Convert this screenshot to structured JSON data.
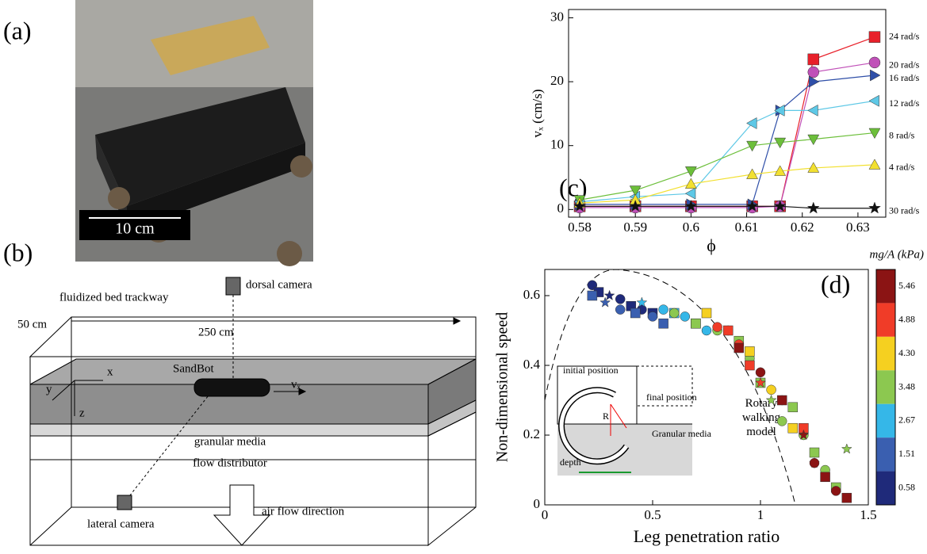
{
  "photo": {
    "panel_label": "(a)",
    "scale_bar": "10 cm"
  },
  "diagram": {
    "panel_label": "(b)",
    "dorsal_camera": "dorsal camera",
    "trackway": "fluidized bed trackway",
    "width": "50 cm",
    "length": "250 cm",
    "robot": "SandBot",
    "axis_x": "x",
    "axis_y": "y",
    "axis_z": "z",
    "velocity": "vₓ",
    "granular_media": "granular media",
    "flow_distributor": "flow distributor",
    "lateral_camera": "lateral camera",
    "air_flow": "air flow direction"
  },
  "chart_data": [
    {
      "type": "line",
      "panel_label": "(c)",
      "x_label": "ϕ",
      "y_label": "vₓ (cm/s)",
      "x": [
        0.58,
        0.59,
        0.6,
        0.611,
        0.616,
        0.622,
        0.633
      ],
      "xlim": [
        0.578,
        0.635
      ],
      "xticks": [
        0.58,
        0.59,
        0.6,
        0.61,
        0.62,
        0.63
      ],
      "ylim": [
        -1.2,
        31.3
      ],
      "yticks": [
        0,
        10,
        20,
        30
      ],
      "series": [
        {
          "name": "24 rad/s",
          "color": "#e8202a",
          "marker": "square",
          "values": [
            0.5,
            0.5,
            0.5,
            0.5,
            0.5,
            23.5,
            27
          ]
        },
        {
          "name": "20 rad/s",
          "color": "#c050b8",
          "marker": "circle",
          "values": [
            0.3,
            0.3,
            0.3,
            0.3,
            0.5,
            21.5,
            23
          ]
        },
        {
          "name": "16 rad/s",
          "color": "#2f4fa8",
          "marker": "right",
          "values": [
            0.8,
            0.8,
            0.8,
            0.8,
            15.5,
            20,
            21
          ]
        },
        {
          "name": "12 rad/s",
          "color": "#5ec8e6",
          "marker": "left",
          "values": [
            1.2,
            2,
            2.5,
            13.5,
            15.5,
            15.5,
            17
          ]
        },
        {
          "name": "8 rad/s",
          "color": "#6cbf3a",
          "marker": "down",
          "values": [
            1.5,
            3,
            6,
            10,
            10.5,
            11,
            12
          ]
        },
        {
          "name": "4 rad/s",
          "color": "#f2e030",
          "marker": "up",
          "values": [
            1,
            1.5,
            4,
            5.5,
            6,
            6.5,
            7
          ]
        },
        {
          "name": "30 rad/s",
          "color": "#111111",
          "marker": "star",
          "values": [
            0.5,
            0.5,
            0.5,
            0.5,
            0.5,
            0.2,
            0.2
          ]
        }
      ]
    },
    {
      "type": "scatter",
      "panel_label": "(d)",
      "x_label": "Leg penetration ratio",
      "y_label": "Non-dimensional speed",
      "xlim": [
        0,
        1.5
      ],
      "xticks": [
        0,
        0.5,
        1,
        1.5
      ],
      "ylim": [
        0,
        0.675
      ],
      "yticks": [
        0,
        0.2,
        0.4,
        0.6
      ],
      "annotation": "Rotary walking model",
      "inset": {
        "initial": "initial position",
        "final": "final position",
        "media": "Granular media",
        "depth": "depth",
        "radius": "R"
      },
      "colorbar": {
        "title": "mg/A (kPa)",
        "colors": [
          "#8b1414",
          "#f03c28",
          "#f5d020",
          "#8cc850",
          "#35b7e8",
          "#3a5fb0",
          "#1f2a7a"
        ],
        "ticks": [
          5.46,
          4.88,
          {
            "value": 4.3,
            "label": "4.30"
          },
          3.48,
          2.67,
          1.51,
          0.58
        ]
      },
      "series": [
        {
          "color": "#1f2a7a",
          "x": [
            0.22,
            0.25,
            0.3,
            0.35,
            0.4,
            0.45,
            0.5
          ],
          "values": [
            0.63,
            0.61,
            0.6,
            0.59,
            0.57,
            0.56,
            0.55
          ]
        },
        {
          "color": "#3a5fb0",
          "x": [
            0.22,
            0.28,
            0.35,
            0.42,
            0.5,
            0.55
          ],
          "values": [
            0.6,
            0.58,
            0.56,
            0.55,
            0.54,
            0.52
          ]
        },
        {
          "color": "#35b7e8",
          "x": [
            0.45,
            0.55,
            0.6,
            0.65,
            0.7,
            0.75
          ],
          "values": [
            0.58,
            0.56,
            0.55,
            0.54,
            0.52,
            0.5
          ]
        },
        {
          "color": "#8cc850",
          "x": [
            0.6,
            0.7,
            0.8,
            0.9,
            0.95,
            1.0,
            1.05,
            1.1,
            1.15,
            1.2,
            1.25,
            1.3,
            1.35,
            1.4
          ],
          "values": [
            0.55,
            0.52,
            0.5,
            0.47,
            0.42,
            0.35,
            0.3,
            0.24,
            0.28,
            0.2,
            0.15,
            0.1,
            0.05,
            0.16
          ]
        },
        {
          "color": "#f5d020",
          "x": [
            0.75,
            0.85,
            0.95,
            1.05,
            1.15,
            1.25
          ],
          "values": [
            0.55,
            0.5,
            0.44,
            0.33,
            0.22,
            0.12
          ]
        },
        {
          "color": "#f03c28",
          "x": [
            0.8,
            0.85,
            0.9,
            0.95,
            1.0,
            1.1,
            1.2
          ],
          "values": [
            0.51,
            0.5,
            0.46,
            0.4,
            0.35,
            0.3,
            0.22
          ]
        },
        {
          "color": "#8b1414",
          "x": [
            0.9,
            1.0,
            1.1,
            1.2,
            1.25,
            1.3,
            1.35,
            1.4
          ],
          "values": [
            0.45,
            0.38,
            0.3,
            0.2,
            0.12,
            0.08,
            0.04,
            0.02
          ]
        }
      ]
    }
  ]
}
